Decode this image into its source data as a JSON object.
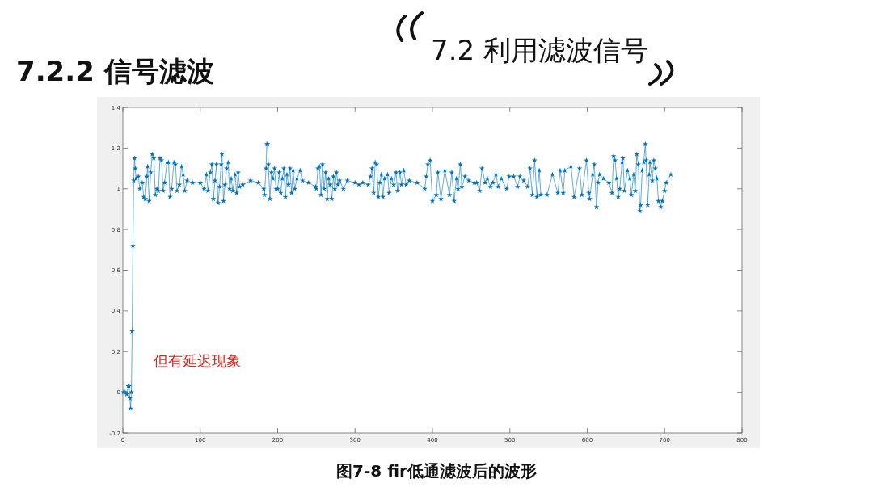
{
  "chart_data": {
    "type": "line",
    "title": "7.2.2 信号滤波",
    "subtitle": "7.2 利用滤波信号",
    "annotations": [
      "但有延迟现象",
      "图7-8 fir低通滤波后的波形"
    ],
    "xlim": [
      0,
      800
    ],
    "xticks": [
      0,
      100,
      200,
      300,
      400,
      500,
      600,
      700,
      800
    ],
    "ylim": [
      -0.2,
      1.4
    ],
    "yticks": [
      -0.2,
      0,
      0.2,
      0.4,
      0.6,
      0.8,
      1,
      1.2,
      1.4
    ],
    "grid": false,
    "marker": "star",
    "line_style": "solid",
    "series": [
      {
        "color": "#0072bd",
        "x": [
          1,
          3,
          5,
          7,
          8,
          9,
          10,
          11,
          12,
          13,
          14,
          15,
          16,
          17,
          20,
          22,
          25,
          27,
          29,
          31,
          32,
          34,
          36,
          38,
          40,
          42,
          44,
          46,
          48,
          50,
          52,
          54,
          57,
          59,
          61,
          63,
          66,
          68,
          70,
          73,
          76,
          78,
          80,
          83,
          90,
          100,
          105,
          108,
          110,
          113,
          115,
          117,
          119,
          121,
          123,
          125,
          127,
          128,
          130,
          132,
          134,
          136,
          138,
          140,
          142,
          145,
          147,
          149,
          151,
          155,
          165,
          175,
          182,
          183,
          185,
          186,
          187,
          188,
          190,
          192,
          194,
          196,
          198,
          200,
          202,
          204,
          206,
          208,
          210,
          212,
          214,
          216,
          218,
          220,
          222,
          225,
          229,
          232,
          240,
          249,
          250,
          252,
          254,
          256,
          258,
          260,
          262,
          264,
          266,
          268,
          270,
          272,
          274,
          276,
          278,
          280,
          285,
          290,
          300,
          305,
          310,
          317,
          320,
          322,
          324,
          326,
          328,
          330,
          332,
          334,
          336,
          338,
          342,
          344,
          347,
          350,
          353,
          355,
          358,
          360,
          363,
          366,
          370,
          380,
          390,
          392,
          394,
          397,
          400,
          405,
          407,
          411,
          416,
          422,
          425,
          428,
          431,
          433,
          436,
          438,
          442,
          447,
          454,
          457,
          461,
          464,
          468,
          471,
          475,
          478,
          482,
          485,
          489,
          496,
          499,
          505,
          510,
          513,
          518,
          523,
          526,
          529,
          532,
          535,
          538,
          540,
          548,
          555,
          562,
          565,
          569,
          571,
          579,
          583,
          590,
          593,
          599,
          602,
          603,
          607,
          609,
          612,
          614,
          616,
          621,
          628,
          632,
          634,
          636,
          638,
          640,
          642,
          645,
          646,
          648,
          652,
          655,
          657,
          660,
          662,
          664,
          666,
          668,
          669,
          671,
          673,
          675,
          676,
          678,
          680,
          681,
          684,
          686,
          688,
          690,
          692,
          695,
          697,
          700,
          702,
          708
        ],
        "values": [
          0,
          0,
          -0.01,
          0.03,
          0.03,
          -0.03,
          -0.08,
          0,
          0.3,
          0.72,
          1.04,
          1.15,
          1.1,
          1.05,
          1.06,
          1.0,
          1.03,
          0.96,
          0.95,
          1.06,
          1.11,
          0.94,
          1.08,
          1.17,
          1.15,
          0.97,
          1.0,
          0.99,
          1.15,
          1.14,
          0.99,
          1.03,
          1.13,
          1.13,
          0.96,
          1.0,
          1.13,
          1.12,
          0.99,
          1.02,
          1.11,
          1.07,
          0.99,
          1.04,
          1.03,
          1.03,
          1.0,
          1.07,
          0.99,
          1.08,
          1.12,
          0.95,
          1.04,
          1.12,
          0.93,
          1.01,
          1.12,
          1.17,
          0.94,
          1.02,
          1.1,
          1.13,
          1.0,
          1.05,
          0.99,
          1.07,
          0.98,
          1.08,
          1.01,
          1.02,
          1.04,
          1.03,
          1.0,
          0.97,
          1.1,
          1.22,
          1.22,
          1.12,
          0.95,
          1.08,
          1.05,
          1.1,
          1.0,
          1.0,
          1.08,
          0.98,
          1.05,
          1.1,
          0.96,
          1.07,
          1.02,
          1.1,
          0.98,
          1.09,
          1.0,
          1.05,
          1.09,
          1.04,
          1.03,
          1.01,
          1.0,
          1.1,
          1.11,
          0.97,
          1.12,
          1.0,
          1.08,
          0.95,
          1.05,
          1.02,
          0.95,
          1.06,
          1.0,
          1.08,
          1.02,
          1.04,
          1.0,
          1.04,
          1.03,
          1.02,
          1.03,
          1.02,
          1.06,
          1.1,
          0.98,
          1.13,
          1.12,
          0.96,
          1.03,
          1.07,
          0.96,
          1.05,
          1.07,
          0.98,
          1.05,
          1.02,
          1.08,
          0.99,
          1.08,
          1.02,
          1.09,
          1.02,
          1.04,
          1.03,
          1.0,
          1.06,
          1.12,
          1.14,
          0.94,
          0.97,
          1.08,
          0.95,
          1.09,
          0.97,
          1.08,
          0.94,
          1.05,
          1.0,
          1.12,
          1.01,
          1.06,
          1.04,
          1.03,
          1.03,
          0.99,
          1.1,
          1.03,
          1.05,
          1.01,
          1.03,
          1.07,
          1.01,
          1.05,
          1.0,
          1.06,
          1.06,
          1.01,
          1.06,
          1.04,
          1.01,
          1.1,
          0.97,
          1.14,
          0.96,
          1.09,
          0.97,
          0.97,
          1.07,
          0.98,
          1.09,
          0.98,
          1.09,
          1.11,
          0.96,
          1.1,
          0.97,
          1.14,
          0.98,
          0.95,
          1.07,
          1.12,
          0.91,
          1.03,
          1.07,
          1.05,
          1.03,
          0.98,
          1.16,
          1.14,
          1.05,
          0.96,
          1.0,
          1.13,
          1.15,
          0.99,
          1.09,
          1.05,
          0.97,
          1.07,
          0.99,
          1.17,
          1.12,
          0.89,
          0.92,
          1.09,
          1.13,
          1.22,
          1.14,
          0.92,
          1.07,
          1.13,
          1.04,
          1.14,
          1.1,
          1.05,
          0.94,
          0.91,
          0.94,
          0.99,
          1.03,
          1.07
        ]
      }
    ]
  }
}
